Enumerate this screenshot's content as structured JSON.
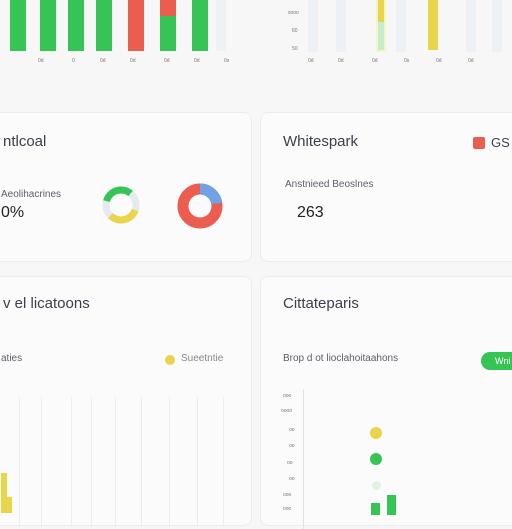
{
  "colors": {
    "green": "#36c455",
    "red": "#ea5d4f",
    "yellow": "#ead44a",
    "blue": "#6fa3e6",
    "light_green": "#c7ecc9",
    "col_bg": "#edf0f4",
    "col_bg_yellow": "#f6f3c8"
  },
  "top_left_chart": {
    "x_ticks": [
      "0d",
      "0",
      "0d",
      "0d",
      "0d",
      "0d",
      "0s"
    ]
  },
  "top_right_chart": {
    "y_ticks": [
      "sooo",
      "60",
      "50"
    ],
    "x_ticks": [
      "0d",
      "0d",
      "0d",
      "0s",
      "0d",
      "0d"
    ]
  },
  "card_a": {
    "title": "ntlcoal",
    "label": "Aeolihacrines",
    "value": "0%"
  },
  "card_b": {
    "title": "Whitespark",
    "label": "Anstnieed Beoslnes",
    "value": "263",
    "legend_text": "GS"
  },
  "card_c": {
    "title": "v el licatoons",
    "label": "aties",
    "legend_text": "Sueetntie"
  },
  "card_d": {
    "title": "Cittateparis",
    "label": "Brop d ot lioclahoitaahons",
    "badge": "Wni",
    "y_ticks": [
      "ooo",
      "oooo",
      "oo",
      "oo",
      "oo",
      "oo",
      "ooo",
      "ooo"
    ]
  }
}
